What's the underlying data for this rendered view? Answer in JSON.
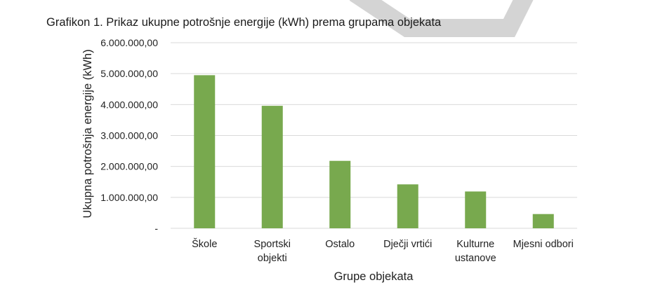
{
  "caption": "Grafikon 1. Prikaz ukupne potrošnje energije (kWh) prema grupama objekata",
  "chart_data": {
    "type": "bar",
    "title": "",
    "xlabel": "Grupe objekata",
    "ylabel": "Ukupna potrošnja energije (kWh)",
    "ylim": [
      0,
      6000000
    ],
    "yticks": [
      0,
      1000000,
      2000000,
      3000000,
      4000000,
      5000000,
      6000000
    ],
    "ytick_labels": [
      "-",
      "1.000.000,00",
      "2.000.000,00",
      "3.000.000,00",
      "4.000.000,00",
      "5.000.000,00",
      "6.000.000,00"
    ],
    "categories": [
      [
        "Škole"
      ],
      [
        "Sportski",
        "objekti"
      ],
      [
        "Ostalo"
      ],
      [
        "Dječji vrtići"
      ],
      [
        "Kulturne",
        "ustanove"
      ],
      [
        "Mjesni odbori"
      ]
    ],
    "values": [
      4950000,
      3960000,
      2180000,
      1420000,
      1190000,
      460000
    ],
    "colors": {
      "bar": "#78a94e",
      "grid": "#d9d9d9"
    },
    "grid": true,
    "legend": "none"
  }
}
